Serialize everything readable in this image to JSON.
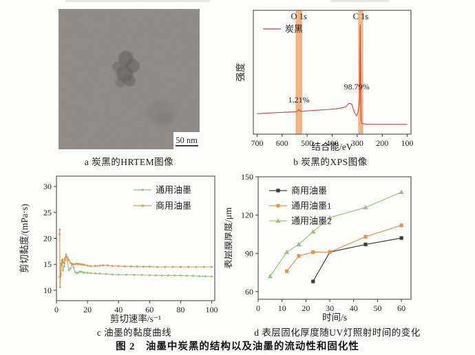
{
  "figure": {
    "caption": "图 2　油墨中炭黑的结构以及油墨的流动性和固化性"
  },
  "panels": {
    "a": {
      "caption": "a 炭黑的HRTEM图像",
      "scale_bar_label": "50 nm"
    },
    "b": {
      "caption": "b 炭黑的XPS图像"
    },
    "c": {
      "caption": "c 油墨的黏度曲线"
    },
    "d": {
      "caption": "d 表层固化厚度随UV灯照射时间的变化"
    }
  },
  "colors": {
    "xps_line": "#c9473b",
    "highlight_band": "#eda169",
    "green_series": "#9cc17e",
    "orange_series": "#e5944f",
    "black_series": "#3c3c3c",
    "axis": "#3a3a3a",
    "tem_background": "#8e8984"
  },
  "chart_data": [
    {
      "id": "xps",
      "type": "line",
      "title": "炭黑的XPS图像",
      "xlabel": "结合能/eV",
      "ylabel": "强度",
      "xlim": [
        715,
        85
      ],
      "ylim": [
        0,
        1
      ],
      "xticks": [
        700,
        600,
        500,
        400,
        300,
        200,
        100
      ],
      "yticks": [],
      "grid": false,
      "legend": {
        "position": "top-left",
        "items": [
          {
            "label": "炭黑",
            "color": "#c9473b",
            "marker": "none"
          }
        ]
      },
      "bands": [
        {
          "label": "O 1s",
          "x_center": 533,
          "x_halfwidth": 13,
          "color": "#eda169",
          "opacity": 0.8
        },
        {
          "label": "C 1s",
          "x_center": 286,
          "x_halfwidth": 10,
          "color": "#eda169",
          "opacity": 0.8
        }
      ],
      "annotations": [
        {
          "text": "1.21%",
          "x": 533,
          "y": 0.255
        },
        {
          "text": "98.79%",
          "x": 302,
          "y": 0.36
        }
      ],
      "series": [
        {
          "name": "炭黑",
          "color": "#c9473b",
          "marker": "none",
          "points": [
            [
              700,
              0.165
            ],
            [
              660,
              0.17
            ],
            [
              620,
              0.174
            ],
            [
              580,
              0.177
            ],
            [
              550,
              0.18
            ],
            [
              538,
              0.186
            ],
            [
              533,
              0.2
            ],
            [
              528,
              0.186
            ],
            [
              520,
              0.184
            ],
            [
              500,
              0.188
            ],
            [
              470,
              0.192
            ],
            [
              440,
              0.196
            ],
            [
              410,
              0.2
            ],
            [
              380,
              0.206
            ],
            [
              360,
              0.212
            ],
            [
              345,
              0.222
            ],
            [
              332,
              0.25
            ],
            [
              322,
              0.244
            ],
            [
              312,
              0.18
            ],
            [
              303,
              0.148
            ],
            [
              298,
              0.168
            ],
            [
              293,
              0.22
            ],
            [
              290,
              0.3
            ],
            [
              288,
              0.88
            ],
            [
              286,
              0.4
            ],
            [
              285,
              0.12
            ],
            [
              282,
              0.085
            ],
            [
              260,
              0.08
            ],
            [
              200,
              0.079
            ],
            [
              150,
              0.079
            ],
            [
              100,
              0.079
            ]
          ]
        }
      ]
    },
    {
      "id": "viscosity",
      "type": "line",
      "title": "油墨的黏度曲线",
      "xlabel": "剪切速率/s⁻¹",
      "ylabel": "剪切黏度/(mPa·s)",
      "xlim": [
        0,
        102
      ],
      "ylim": [
        8,
        32
      ],
      "xticks": [
        0,
        20,
        40,
        60,
        80,
        100
      ],
      "yticks": [
        10,
        15,
        20,
        25,
        30
      ],
      "grid": false,
      "legend": {
        "position": "top-right",
        "items": [
          {
            "label": "通用油墨",
            "color": "#9cc17e",
            "marker": "dot"
          },
          {
            "label": "商用油墨",
            "color": "#e5944f",
            "marker": "dot"
          }
        ]
      },
      "series": [
        {
          "name": "通用油墨",
          "color": "#9cc17e",
          "marker": "dot",
          "points": [
            [
              2,
              12.6
            ],
            [
              2.5,
              13.2
            ],
            [
              3,
              15.2
            ],
            [
              3.6,
              15.8
            ],
            [
              4.2,
              13.8
            ],
            [
              5,
              14.6
            ],
            [
              5.6,
              16.2
            ],
            [
              6.2,
              16.9
            ],
            [
              7,
              15.8
            ],
            [
              8,
              13.9
            ],
            [
              9,
              14.2
            ],
            [
              10,
              14.9
            ],
            [
              11,
              14.4
            ],
            [
              12,
              13.5
            ],
            [
              13,
              13.3
            ],
            [
              14,
              13.4
            ],
            [
              15,
              13.6
            ],
            [
              16,
              13.55
            ],
            [
              17,
              13.45
            ],
            [
              18,
              13.4
            ],
            [
              20,
              13.35
            ],
            [
              22,
              13.3
            ],
            [
              25,
              13.25
            ],
            [
              28,
              13.2
            ],
            [
              32,
              13.15
            ],
            [
              36,
              13.05
            ],
            [
              40,
              13.0
            ],
            [
              45,
              13.0
            ],
            [
              50,
              12.98
            ],
            [
              55,
              12.95
            ],
            [
              60,
              12.9
            ],
            [
              64,
              12.88
            ],
            [
              68,
              12.85
            ],
            [
              72,
              12.85
            ],
            [
              76,
              12.85
            ],
            [
              80,
              12.85
            ],
            [
              84,
              12.8
            ],
            [
              88,
              12.78
            ],
            [
              92,
              12.72
            ],
            [
              96,
              12.68
            ],
            [
              100,
              12.65
            ]
          ]
        },
        {
          "name": "商用油墨",
          "color": "#e5944f",
          "marker": "dot",
          "points": [
            [
              2,
              20.8
            ],
            [
              2.1,
              21.7
            ],
            [
              2.3,
              10.6
            ],
            [
              2.8,
              13.0
            ],
            [
              3.2,
              14.9
            ],
            [
              3.6,
              15.7
            ],
            [
              4,
              15.9
            ],
            [
              4.5,
              15.4
            ],
            [
              5,
              15.2
            ],
            [
              5.5,
              15.9
            ],
            [
              6,
              16.4
            ],
            [
              6.6,
              16.5
            ],
            [
              7.2,
              16.2
            ],
            [
              8,
              15.8
            ],
            [
              9,
              15.3
            ],
            [
              10,
              15.1
            ],
            [
              11,
              15.0
            ],
            [
              12,
              15.05
            ],
            [
              13,
              15.1
            ],
            [
              14,
              15.1
            ],
            [
              15,
              15.05
            ],
            [
              16,
              15.0
            ],
            [
              17,
              14.95
            ],
            [
              18,
              14.9
            ],
            [
              20,
              14.75
            ],
            [
              22,
              14.65
            ],
            [
              25,
              14.7
            ],
            [
              28,
              14.75
            ],
            [
              30,
              14.8
            ],
            [
              33,
              14.8
            ],
            [
              36,
              14.7
            ],
            [
              40,
              14.65
            ],
            [
              44,
              14.6
            ],
            [
              48,
              14.6
            ],
            [
              52,
              14.58
            ],
            [
              56,
              14.55
            ],
            [
              60,
              14.55
            ],
            [
              65,
              14.5
            ],
            [
              70,
              14.5
            ],
            [
              75,
              14.5
            ],
            [
              80,
              14.5
            ],
            [
              85,
              14.5
            ],
            [
              90,
              14.5
            ],
            [
              95,
              14.5
            ],
            [
              100,
              14.5
            ]
          ]
        }
      ]
    },
    {
      "id": "curing",
      "type": "line",
      "title": "表层固化厚度随UV灯照射时间的变化",
      "xlabel": "时间/s",
      "ylabel": "表层膜厚度/μm",
      "xlim": [
        0,
        64
      ],
      "ylim": [
        54,
        150
      ],
      "xticks": [
        0,
        10,
        20,
        30,
        40,
        50,
        60
      ],
      "yticks": [
        60,
        90,
        120,
        150
      ],
      "grid": false,
      "legend": {
        "position": "top-left",
        "items": [
          {
            "label": "商用油墨",
            "color": "#3c3c3c",
            "marker": "square"
          },
          {
            "label": "通用油墨1",
            "color": "#e5944f",
            "marker": "square"
          },
          {
            "label": "通用油墨2",
            "color": "#9cc17e",
            "marker": "triangle"
          }
        ]
      },
      "series": [
        {
          "name": "商用油墨",
          "color": "#3c3c3c",
          "marker": "square",
          "points": [
            [
              23,
              68
            ],
            [
              30,
              91
            ],
            [
              45,
              97
            ],
            [
              60,
              102
            ]
          ]
        },
        {
          "name": "通用油墨1",
          "color": "#e5944f",
          "marker": "square",
          "points": [
            [
              12,
              76
            ],
            [
              17,
              88
            ],
            [
              23,
              91
            ],
            [
              30,
              91
            ],
            [
              45,
              103
            ],
            [
              60,
              112
            ]
          ]
        },
        {
          "name": "通用油墨2",
          "color": "#9cc17e",
          "marker": "triangle",
          "points": [
            [
              5,
              72
            ],
            [
              12,
              91
            ],
            [
              17,
              97
            ],
            [
              23,
              107
            ],
            [
              30,
              118
            ],
            [
              45,
              126
            ],
            [
              60,
              138
            ]
          ]
        }
      ]
    }
  ]
}
